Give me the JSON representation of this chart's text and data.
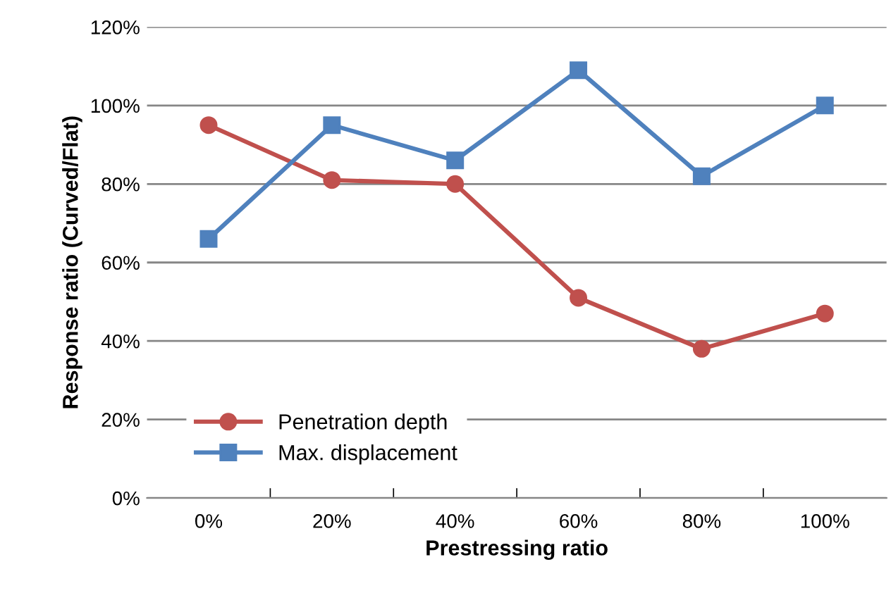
{
  "chart_data": {
    "type": "line",
    "xlabel": "Prestressing ratio",
    "ylabel": "Response ratio (Curved/Flat)",
    "categories": [
      "0%",
      "20%",
      "40%",
      "60%",
      "80%",
      "100%"
    ],
    "series": [
      {
        "name": "Penetration depth",
        "color": "#c0504d",
        "marker": "circle",
        "values": [
          95,
          81,
          80,
          51,
          38,
          47
        ]
      },
      {
        "name": "Max. displacement",
        "color": "#4f81bd",
        "marker": "square",
        "values": [
          66,
          95,
          86,
          109,
          82,
          100
        ]
      }
    ],
    "ylim": [
      0,
      120
    ],
    "yticks": [
      {
        "value": 0,
        "label": "0%"
      },
      {
        "value": 20,
        "label": "20%"
      },
      {
        "value": 40,
        "label": "40%"
      },
      {
        "value": 60,
        "label": "60%"
      },
      {
        "value": 80,
        "label": "80%"
      },
      {
        "value": 100,
        "label": "100%"
      },
      {
        "value": 120,
        "label": "120%"
      }
    ],
    "grid": "y",
    "legend": "bottom left"
  }
}
